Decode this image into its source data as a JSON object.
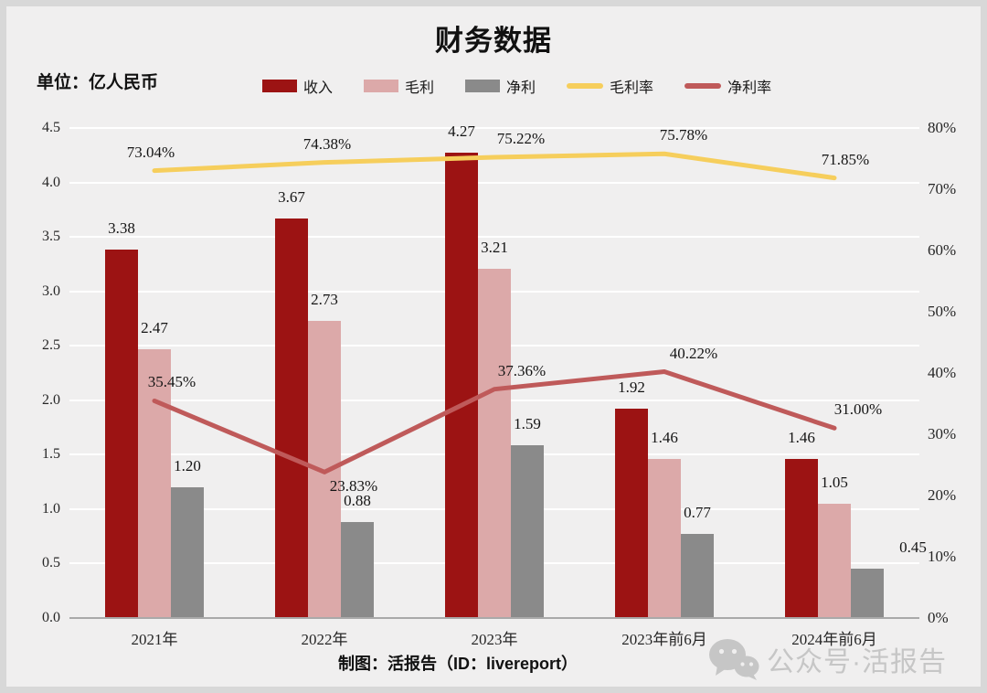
{
  "chart_data": {
    "type": "bar+line",
    "title": "财务数据",
    "unit_label": "单位：亿人民币",
    "categories": [
      "2021年",
      "2022年",
      "2023年",
      "2023年前6月",
      "2024年前6月"
    ],
    "left_axis": {
      "min": 0,
      "max": 4.5,
      "step": 0.5
    },
    "right_axis": {
      "min": 0,
      "max": 80,
      "step": 10,
      "suffix": "%"
    },
    "bar_series": [
      {
        "name": "收入",
        "color": "#9C1313",
        "values": [
          3.38,
          3.67,
          4.27,
          1.92,
          1.46
        ],
        "labels": [
          "3.38",
          "3.67",
          "4.27",
          "1.92",
          "1.46"
        ]
      },
      {
        "name": "毛利",
        "color": "#DCA9A9",
        "values": [
          2.47,
          2.73,
          3.21,
          1.46,
          1.05
        ],
        "labels": [
          "2.47",
          "2.73",
          "3.21",
          "1.46",
          "1.05"
        ]
      },
      {
        "name": "净利",
        "color": "#8A8A8A",
        "values": [
          1.2,
          0.88,
          1.59,
          0.77,
          0.45
        ],
        "labels": [
          "1.20",
          "0.88",
          "1.59",
          "0.77",
          "0.45"
        ],
        "label_dx": [
          0,
          0,
          0,
          0,
          50
        ]
      }
    ],
    "line_series": [
      {
        "name": "毛利率",
        "color": "#F6CE5C",
        "values_pct": [
          73.04,
          74.38,
          75.22,
          75.78,
          71.85
        ],
        "labels": [
          "73.04%",
          "74.38%",
          "75.22%",
          "75.78%",
          "71.85%"
        ],
        "label_dx": [
          -4,
          3,
          29,
          21,
          12
        ],
        "label_dy": [
          0,
          0,
          0,
          0,
          0
        ]
      },
      {
        "name": "净利率",
        "color": "#BF5A5A",
        "values_pct": [
          35.45,
          23.83,
          37.36,
          40.22,
          31.0
        ],
        "labels": [
          "35.45%",
          "23.83%",
          "37.36%",
          "40.22%",
          "31.00%"
        ],
        "label_dx": [
          19,
          32,
          30,
          32,
          26
        ],
        "label_dy": [
          0,
          36,
          0,
          0,
          0
        ]
      }
    ],
    "grid": "horizontal-white",
    "legend_position": "top"
  },
  "footer": {
    "credit": "制图：活报告（ID：livereport）"
  },
  "watermark": {
    "icon": "wechat-icon",
    "text": "公众号·活报告",
    "color": "#c6c6c6"
  },
  "colors": {
    "frame_bg": "#D8D8D8",
    "canvas_bg": "#F0EFEF",
    "gridline": "#FFFFFF",
    "axis_line": "#A9A9A9",
    "text": "#141414"
  }
}
